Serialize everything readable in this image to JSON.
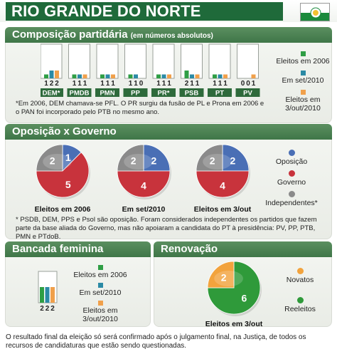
{
  "header": {
    "title": "RIO GRANDE DO NORTE",
    "flag_icon": "rn-flag-icon"
  },
  "colors": {
    "dark_green": "#1f6a3a",
    "section_green": "#4a8052",
    "legend_green": "#2f9e45",
    "legend_blue": "#2b8aa5",
    "legend_orange": "#f0a04b",
    "pie_blue": "#4a6fb5",
    "pie_red": "#c8333c",
    "pie_gray": "#8a8a8a",
    "pie_green": "#2f9a3a",
    "pie_orange": "#f2a33d"
  },
  "composicao": {
    "title": "Composição partidária",
    "subtitle": "(em números absolutos)",
    "note": "*Em 2006, DEM chamava-se PFL. O PR surgiu da fusão de PL e Prona em 2006 e o PAN foi incorporado pelo PTB no mesmo ano.",
    "legend": [
      {
        "label": "Eleitos em 2006",
        "color": "#2f9e45"
      },
      {
        "label": "Em set/2010",
        "color": "#2b8aa5"
      },
      {
        "label": "Eleitos em 3/out/2010",
        "color": "#f0a04b"
      }
    ]
  },
  "oposicao": {
    "title": "Oposição x Governo",
    "legend": [
      {
        "label": "Oposição",
        "color": "#4a6fb5"
      },
      {
        "label": "Governo",
        "color": "#c8333c"
      },
      {
        "label": "Independentes*",
        "color": "#8a8a8a"
      }
    ],
    "note": "* PSDB, DEM, PPS e Psol são oposição. Foram considerados independentes os partidos que fazem parte da base aliada do Governo, mas não apoiaram a candidata do PT à presidência: PV, PP, PTB, PMN e PTdoB."
  },
  "bancada": {
    "title": "Bancada feminina",
    "legend": [
      {
        "label": "Eleitos em 2006",
        "color": "#2f9e45"
      },
      {
        "label": "Em set/2010",
        "color": "#2b8aa5"
      },
      {
        "label": "Eleitos em 3/out/2010",
        "color": "#f0a04b"
      }
    ]
  },
  "renovacao": {
    "title": "Renovação",
    "legend": [
      {
        "label": "Novatos",
        "color": "#f2a33d"
      },
      {
        "label": "Reeleitos",
        "color": "#2f9a3a"
      }
    ]
  },
  "footer": "O resultado final da eleição só será confirmado após o julgamento final, na Justiça, de todos os recursos de candidaturas que estão sendo questionadas.",
  "chart_data": [
    {
      "type": "bar",
      "title": "Composição partidária",
      "categories": [
        "DEM*",
        "PMDB",
        "PMN",
        "PP",
        "PR*",
        "PSB",
        "PT",
        "PV"
      ],
      "series": [
        {
          "name": "Eleitos em 2006",
          "values": [
            1,
            1,
            1,
            1,
            1,
            2,
            1,
            0
          ]
        },
        {
          "name": "Em set/2010",
          "values": [
            2,
            1,
            1,
            1,
            1,
            1,
            1,
            0
          ]
        },
        {
          "name": "Eleitos em 3/out/2010",
          "values": [
            2,
            1,
            1,
            0,
            1,
            1,
            1,
            1
          ]
        }
      ],
      "ylim": [
        0,
        8
      ]
    },
    {
      "type": "pie",
      "title": "Eleitos em 2006",
      "labels": [
        "Oposição",
        "Governo",
        "Independentes*"
      ],
      "values": [
        1,
        5,
        2
      ]
    },
    {
      "type": "pie",
      "title": "Em set/2010",
      "labels": [
        "Oposição",
        "Governo",
        "Independentes*"
      ],
      "values": [
        2,
        4,
        2
      ]
    },
    {
      "type": "pie",
      "title": "Eleitos em 3/out",
      "labels": [
        "Oposição",
        "Governo",
        "Independentes*"
      ],
      "values": [
        2,
        4,
        2
      ]
    },
    {
      "type": "bar",
      "title": "Bancada feminina",
      "categories": [
        ""
      ],
      "series": [
        {
          "name": "Eleitos em 2006",
          "values": [
            2
          ]
        },
        {
          "name": "Em set/2010",
          "values": [
            2
          ]
        },
        {
          "name": "Eleitos em 3/out/2010",
          "values": [
            2
          ]
        }
      ],
      "ylim": [
        0,
        8
      ]
    },
    {
      "type": "pie",
      "title": "Eleitos em 3/out",
      "labels": [
        "Novatos",
        "Reeleitos"
      ],
      "values": [
        2,
        6
      ]
    }
  ]
}
